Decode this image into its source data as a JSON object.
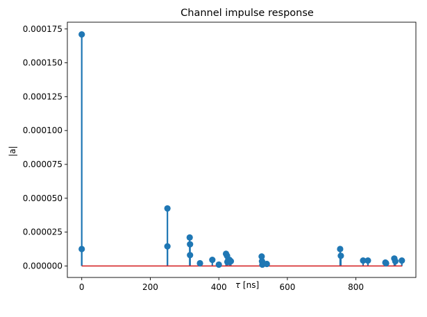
{
  "chart_data": {
    "type": "stem",
    "title": "Channel impulse response",
    "xlabel_symbol": "τ",
    "xlabel_unit": "[ns]",
    "ylabel": "|a|",
    "xlim": [
      -42,
      975
    ],
    "ylim": [
      -8.5e-06,
      0.00018
    ],
    "xticks": [
      0,
      200,
      400,
      600,
      800
    ],
    "yticks": [
      0.0,
      2.5e-05,
      5e-05,
      7.5e-05,
      0.0001,
      0.000125,
      0.00015,
      0.000175
    ],
    "ytick_labels": [
      "0.000000",
      "0.000025",
      "0.000050",
      "0.000075",
      "0.000100",
      "0.000125",
      "0.000150",
      "0.000175"
    ],
    "grid": false,
    "colors": {
      "stem": "#1f77b4",
      "baseline": "#d62728"
    },
    "baseline": {
      "value": 0,
      "x_range": [
        0,
        935
      ]
    },
    "points": [
      {
        "x": 0,
        "y": 0.000171
      },
      {
        "x": 0,
        "y": 1.25e-05
      },
      {
        "x": 250,
        "y": 4.25e-05
      },
      {
        "x": 250,
        "y": 1.45e-05
      },
      {
        "x": 315,
        "y": 2.1e-05
      },
      {
        "x": 316,
        "y": 1.6e-05
      },
      {
        "x": 316,
        "y": 8e-06
      },
      {
        "x": 345,
        "y": 2e-06
      },
      {
        "x": 381,
        "y": 4.5e-06
      },
      {
        "x": 400,
        "y": 1e-06
      },
      {
        "x": 421,
        "y": 9e-06
      },
      {
        "x": 424,
        "y": 7.5e-06
      },
      {
        "x": 425,
        "y": 3e-06
      },
      {
        "x": 431,
        "y": 4.5e-06
      },
      {
        "x": 435,
        "y": 3.5e-06
      },
      {
        "x": 525,
        "y": 7e-06
      },
      {
        "x": 526,
        "y": 3.5e-06
      },
      {
        "x": 527,
        "y": 1e-06
      },
      {
        "x": 540,
        "y": 1.5e-06
      },
      {
        "x": 754,
        "y": 1.25e-05
      },
      {
        "x": 756,
        "y": 7.5e-06
      },
      {
        "x": 821,
        "y": 4e-06
      },
      {
        "x": 835,
        "y": 4e-06
      },
      {
        "x": 886,
        "y": 2.5e-06
      },
      {
        "x": 888,
        "y": 2e-06
      },
      {
        "x": 912,
        "y": 5.5e-06
      },
      {
        "x": 915,
        "y": 3.5e-06
      },
      {
        "x": 934,
        "y": 4e-06
      }
    ]
  }
}
